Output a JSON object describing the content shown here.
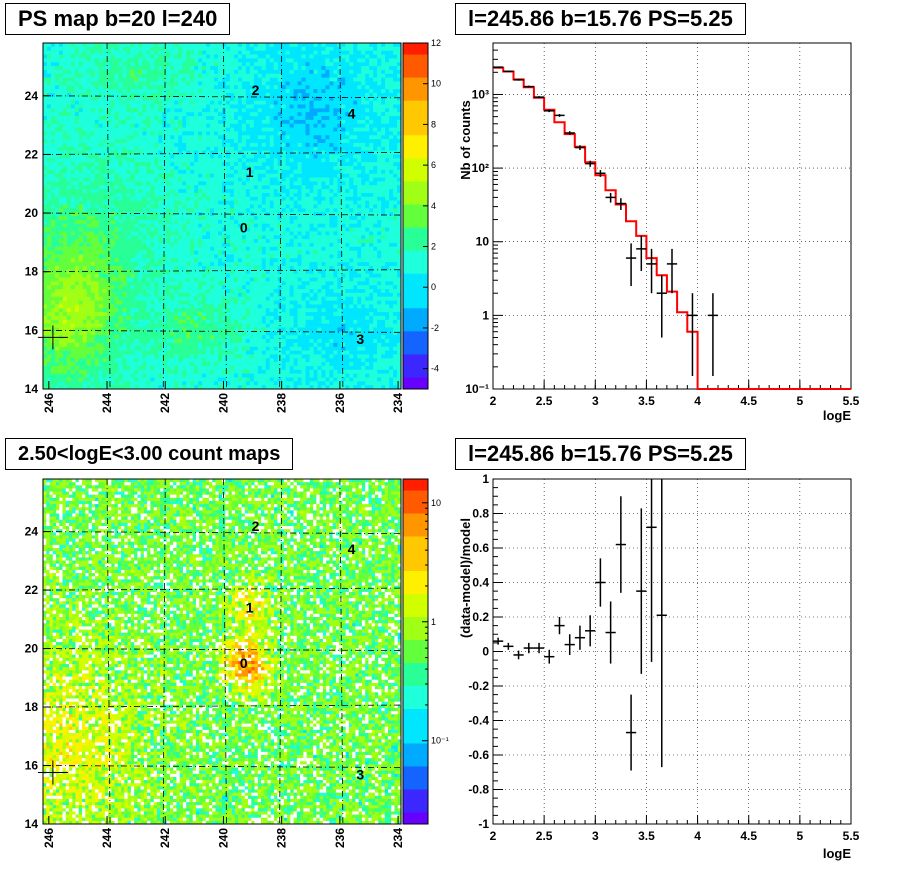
{
  "panels": {
    "ps_map": {
      "title": "PS map b=20 l=240",
      "x_ticks": [
        "246",
        "244",
        "242",
        "240",
        "238",
        "236",
        "234"
      ],
      "y_ticks": [
        "14",
        "16",
        "18",
        "20",
        "22",
        "24"
      ],
      "colorbar_ticks": [
        "12",
        "10",
        "8",
        "6",
        "4",
        "2",
        "0",
        "-2",
        "-4"
      ],
      "sources": [
        "2",
        "4",
        "1",
        "0",
        "3"
      ]
    },
    "spectrum": {
      "title": "l=245.86 b=15.76 PS=5.25",
      "ylabel": "Nb of counts",
      "xlabel": "logE"
    },
    "count_map": {
      "title": "2.50<logE<3.00 count maps",
      "x_ticks": [
        "246",
        "244",
        "242",
        "240",
        "238",
        "236",
        "234"
      ],
      "y_ticks": [
        "14",
        "16",
        "18",
        "20",
        "22",
        "24"
      ],
      "colorbar_ticks": [
        "10",
        "1",
        "10⁻¹"
      ],
      "sources": [
        "2",
        "4",
        "1",
        "0",
        "3"
      ]
    },
    "residual": {
      "title": "l=245.86 b=15.76 PS=5.25",
      "ylabel": "(data-model)/model",
      "xlabel": "logE"
    }
  },
  "colors": {
    "model": "#ff0000",
    "data": "#000000",
    "grid": "#000000"
  },
  "chart_data": [
    {
      "type": "heatmap",
      "title": "PS map b=20 l=240",
      "xlabel": "",
      "ylabel": "",
      "xlim": [
        246.2,
        233.9
      ],
      "ylim": [
        14,
        25.8
      ],
      "x_ticks": [
        246,
        244,
        242,
        240,
        238,
        236,
        234
      ],
      "y_ticks": [
        14,
        16,
        18,
        20,
        22,
        24
      ],
      "color_range": [
        -5,
        12
      ],
      "grid": true,
      "sources": [
        {
          "label": "2",
          "l": 238.9,
          "b": 24.2
        },
        {
          "label": "4",
          "l": 235.6,
          "b": 23.4
        },
        {
          "label": "1",
          "l": 239.1,
          "b": 21.4
        },
        {
          "label": "0",
          "l": 239.3,
          "b": 19.5
        },
        {
          "label": "3",
          "l": 235.3,
          "b": 15.7
        }
      ],
      "marker": {
        "l": 245.86,
        "b": 15.76
      }
    },
    {
      "type": "line",
      "title": "l=245.86 b=15.76 PS=5.25",
      "xlabel": "logE",
      "ylabel": "Nb of counts",
      "xlim": [
        2,
        5.5
      ],
      "ylim": [
        0.1,
        5000
      ],
      "yscale": "log",
      "x_ticks": [
        2,
        2.5,
        3,
        3.5,
        4,
        4.5,
        5,
        5.5
      ],
      "grid": true,
      "series": [
        {
          "type": "step",
          "edges": [
            2.0,
            2.1,
            2.2,
            2.3,
            2.4,
            2.5,
            2.6,
            2.7,
            2.8,
            2.9,
            3.0,
            3.1,
            3.2,
            3.3,
            3.4,
            3.5,
            3.6,
            3.7,
            3.8,
            3.9,
            4.0,
            5.5
          ],
          "values": [
            2300,
            2050,
            1600,
            1250,
            900,
            620,
            420,
            290,
            195,
            120,
            80,
            50,
            32,
            19,
            12,
            6,
            3.5,
            2.1,
            1.1,
            0.6,
            0.1
          ]
        },
        {
          "type": "errorbar",
          "x": [
            2.05,
            2.15,
            2.25,
            2.35,
            2.45,
            2.55,
            2.65,
            2.75,
            2.85,
            2.95,
            3.05,
            3.15,
            3.25,
            3.35,
            3.45,
            3.55,
            3.65,
            3.75,
            3.95,
            4.15
          ],
          "y": [
            2350,
            2060,
            1580,
            1280,
            920,
            600,
            520,
            300,
            190,
            115,
            85,
            40,
            33,
            6,
            8,
            5,
            2,
            5,
            1,
            1
          ],
          "err_low": [
            48,
            45,
            40,
            36,
            30,
            24,
            23,
            17,
            14,
            11,
            9,
            6,
            6,
            3.5,
            4,
            3,
            1.5,
            3,
            0.85,
            0.85
          ],
          "err_high": [
            48,
            45,
            40,
            36,
            30,
            24,
            23,
            17,
            14,
            11,
            9,
            6,
            6,
            3.5,
            4,
            3,
            1.5,
            3,
            1,
            1
          ]
        }
      ]
    },
    {
      "type": "heatmap",
      "title": "2.50<logE<3.00 count maps",
      "xlabel": "",
      "ylabel": "",
      "xlim": [
        246.2,
        233.9
      ],
      "ylim": [
        14,
        25.8
      ],
      "x_ticks": [
        246,
        244,
        242,
        240,
        238,
        236,
        234
      ],
      "y_ticks": [
        14,
        16,
        18,
        20,
        22,
        24
      ],
      "color_scale": "log",
      "color_range": [
        0.02,
        15
      ],
      "grid": true,
      "sources": [
        {
          "label": "2",
          "l": 238.9,
          "b": 24.2
        },
        {
          "label": "4",
          "l": 235.6,
          "b": 23.4
        },
        {
          "label": "1",
          "l": 239.1,
          "b": 21.4
        },
        {
          "label": "0",
          "l": 239.3,
          "b": 19.5
        },
        {
          "label": "3",
          "l": 235.3,
          "b": 15.7
        }
      ],
      "marker": {
        "l": 245.86,
        "b": 15.76
      }
    },
    {
      "type": "scatter",
      "title": "l=245.86 b=15.76 PS=5.25",
      "xlabel": "logE",
      "ylabel": "(data-model)/model",
      "xlim": [
        2,
        5.5
      ],
      "ylim": [
        -1,
        1
      ],
      "x_ticks": [
        2,
        2.5,
        3,
        3.5,
        4,
        4.5,
        5,
        5.5
      ],
      "y_ticks": [
        -1,
        -0.8,
        -0.6,
        -0.4,
        -0.2,
        0,
        0.2,
        0.4,
        0.6,
        0.8,
        1
      ],
      "grid": true,
      "x": [
        2.05,
        2.15,
        2.25,
        2.35,
        2.45,
        2.55,
        2.65,
        2.75,
        2.85,
        2.95,
        3.05,
        3.15,
        3.25,
        3.35,
        3.45,
        3.55,
        3.65
      ],
      "y": [
        0.06,
        0.03,
        -0.02,
        0.02,
        0.02,
        -0.03,
        0.15,
        0.04,
        0.08,
        0.12,
        0.4,
        0.11,
        0.62,
        -0.47,
        0.35,
        0.72,
        0.21
      ],
      "err": [
        0.02,
        0.02,
        0.025,
        0.03,
        0.03,
        0.04,
        0.05,
        0.06,
        0.07,
        0.09,
        0.14,
        0.18,
        0.28,
        0.22,
        0.48,
        0.78,
        0.88
      ]
    }
  ]
}
